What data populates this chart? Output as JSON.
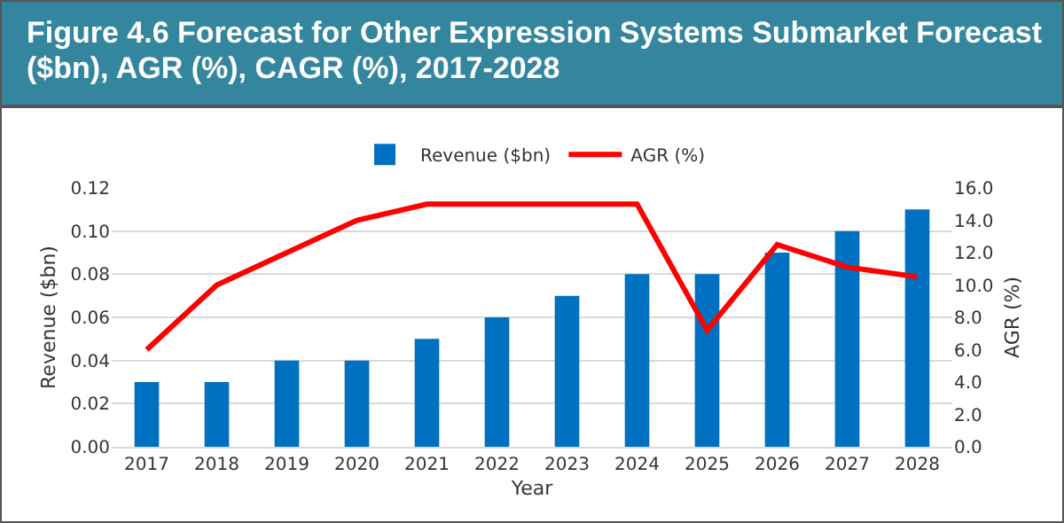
{
  "chart_data": {
    "type": "bar",
    "title": "Figure 4.6 Forecast for Other Expression Systems Submarket Forecast ($bn), AGR (%), CAGR (%), 2017-2028",
    "xlabel": "Year",
    "ylabel": "Revenue ($bn)",
    "y2label": "AGR (%)",
    "categories": [
      "2017",
      "2018",
      "2019",
      "2020",
      "2021",
      "2022",
      "2023",
      "2024",
      "2025",
      "2026",
      "2027",
      "2028"
    ],
    "series": [
      {
        "name": "Revenue ($bn)",
        "color": "#0070c0",
        "values": [
          0.03,
          0.03,
          0.04,
          0.04,
          0.05,
          0.06,
          0.07,
          0.08,
          0.08,
          0.09,
          0.1,
          0.11
        ]
      },
      {
        "name": "AGR (%)",
        "type": "line",
        "axis": "y2",
        "color": "#ff0000",
        "values": [
          6.0,
          10.0,
          12.0,
          14.0,
          15.0,
          15.0,
          15.0,
          15.0,
          7.2,
          12.5,
          11.1,
          10.5
        ]
      }
    ],
    "ylim": [
      0,
      0.12
    ],
    "yticks": [
      {
        "value": 0,
        "label": "0.00"
      },
      {
        "value": 0.02,
        "label": "0.02"
      },
      {
        "value": 0.04,
        "label": "0.04"
      },
      {
        "value": 0.06,
        "label": "0.06"
      },
      {
        "value": 0.08,
        "label": "0.08"
      },
      {
        "value": 0.1,
        "label": "0.10"
      },
      {
        "value": 0.12,
        "label": "0.12"
      }
    ],
    "y2lim": [
      0,
      16
    ],
    "y2ticks": [
      {
        "value": 0,
        "label": "0.0"
      },
      {
        "value": 2,
        "label": "2.0"
      },
      {
        "value": 4,
        "label": "4.0"
      },
      {
        "value": 6,
        "label": "6.0"
      },
      {
        "value": 8,
        "label": "8.0"
      },
      {
        "value": 10,
        "label": "10.0"
      },
      {
        "value": 12,
        "label": "12.0"
      },
      {
        "value": 14,
        "label": "14.0"
      },
      {
        "value": 16,
        "label": "16.0"
      }
    ],
    "grid": "y",
    "legend": "top",
    "marker": "none",
    "line_style": "solid"
  }
}
